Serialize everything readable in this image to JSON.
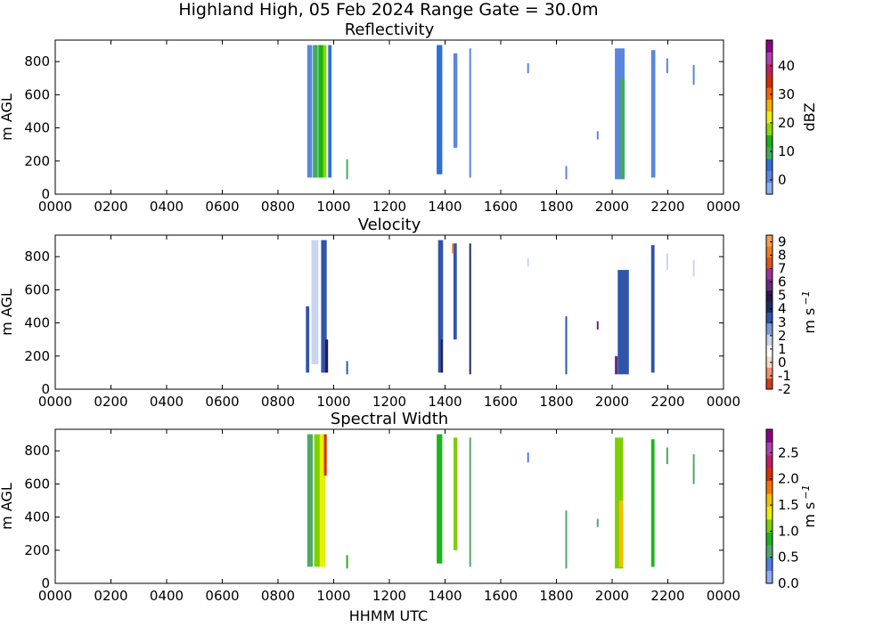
{
  "figure": {
    "suptitle": "Highland High, 05 Feb 2024 Range Gate = 30.0m",
    "xlabel": "HHMM UTC"
  },
  "chart_data": [
    {
      "type": "heatmap",
      "title": "Reflectivity",
      "ylabel": "m AGL",
      "x_tick_labels": [
        "0000",
        "0200",
        "0400",
        "0600",
        "0800",
        "1000",
        "1200",
        "1400",
        "1600",
        "1800",
        "2000",
        "2200",
        "0000"
      ],
      "xlim_hours": [
        0,
        24
      ],
      "ylim": [
        0,
        930
      ],
      "y_ticks": [
        0,
        200,
        400,
        600,
        800
      ],
      "colorbar": {
        "label": "dBZ",
        "range": [
          -5,
          49
        ],
        "ticks": [
          0,
          10,
          20,
          30,
          40
        ],
        "colors": [
          "#8fb1f2",
          "#5a86de",
          "#2f6fd6",
          "#3fae5a",
          "#17b317",
          "#8fd600",
          "#f0f000",
          "#f5b000",
          "#ff6000",
          "#d82a00",
          "#c02060",
          "#b040b0",
          "#8a008a"
        ]
      },
      "echo_columns": [
        {
          "t": 9.05,
          "dt": 0.18,
          "z0": 100,
          "z1": 900,
          "value": 0
        },
        {
          "t": 9.25,
          "dt": 0.18,
          "z0": 100,
          "z1": 900,
          "value": 8
        },
        {
          "t": 9.45,
          "dt": 0.18,
          "z0": 100,
          "z1": 900,
          "value": 14
        },
        {
          "t": 9.62,
          "dt": 0.12,
          "z0": 100,
          "z1": 900,
          "value": 18
        },
        {
          "t": 9.8,
          "dt": 0.12,
          "z0": 100,
          "z1": 900,
          "value": 6
        },
        {
          "t": 10.45,
          "dt": 0.06,
          "z0": 90,
          "z1": 210,
          "value": 10
        },
        {
          "t": 13.7,
          "dt": 0.2,
          "z0": 120,
          "z1": 900,
          "value": 4
        },
        {
          "t": 14.3,
          "dt": 0.14,
          "z0": 280,
          "z1": 850,
          "value": 2
        },
        {
          "t": 14.87,
          "dt": 0.05,
          "z0": 100,
          "z1": 880,
          "value": 0
        },
        {
          "t": 16.95,
          "dt": 0.04,
          "z0": 730,
          "z1": 790,
          "value": 0
        },
        {
          "t": 18.32,
          "dt": 0.04,
          "z0": 90,
          "z1": 170,
          "value": 1
        },
        {
          "t": 19.45,
          "dt": 0.03,
          "z0": 330,
          "z1": 380,
          "value": 0
        },
        {
          "t": 20.1,
          "dt": 0.35,
          "z0": 90,
          "z1": 880,
          "value": 2
        },
        {
          "t": 20.3,
          "dt": 0.15,
          "z0": 100,
          "z1": 700,
          "value": 8
        },
        {
          "t": 21.4,
          "dt": 0.15,
          "z0": 100,
          "z1": 870,
          "value": 1
        },
        {
          "t": 21.95,
          "dt": 0.05,
          "z0": 730,
          "z1": 820,
          "value": 0
        },
        {
          "t": 22.9,
          "dt": 0.06,
          "z0": 660,
          "z1": 780,
          "value": 0
        }
      ]
    },
    {
      "type": "heatmap",
      "title": "Velocity",
      "ylabel": "m AGL",
      "x_tick_labels": [
        "0000",
        "0200",
        "0400",
        "0600",
        "0800",
        "1000",
        "1200",
        "1400",
        "1600",
        "1800",
        "2000",
        "2200",
        "0000"
      ],
      "xlim_hours": [
        0,
        24
      ],
      "ylim": [
        0,
        930
      ],
      "y_ticks": [
        0,
        200,
        400,
        600,
        800
      ],
      "colorbar": {
        "label": "m s",
        "label_superscript": "−1",
        "range": [
          -2,
          9.5
        ],
        "ticks": [
          -2,
          -1,
          0,
          1,
          2,
          3,
          4,
          5,
          6,
          7,
          8,
          9
        ],
        "colors": [
          "#d23c1a",
          "#f09070",
          "#ffd8d0",
          "#ffffff",
          "#c8d6f0",
          "#7a9ad6",
          "#2f55a8",
          "#1b2a60",
          "#2a1848",
          "#6a2a80",
          "#a030a0",
          "#e05020",
          "#f07a20",
          "#f5a050"
        ]
      },
      "echo_columns": [
        {
          "t": 9.0,
          "dt": 0.12,
          "z0": 100,
          "z1": 500,
          "value": 3
        },
        {
          "t": 9.2,
          "dt": 0.25,
          "z0": 150,
          "z1": 900,
          "value": 2
        },
        {
          "t": 9.55,
          "dt": 0.2,
          "z0": 100,
          "z1": 900,
          "value": 3
        },
        {
          "t": 9.7,
          "dt": 0.1,
          "z0": 100,
          "z1": 300,
          "value": 5
        },
        {
          "t": 10.45,
          "dt": 0.06,
          "z0": 90,
          "z1": 170,
          "value": 3
        },
        {
          "t": 13.75,
          "dt": 0.18,
          "z0": 100,
          "z1": 900,
          "value": 3
        },
        {
          "t": 13.85,
          "dt": 0.06,
          "z0": 100,
          "z1": 300,
          "value": 5
        },
        {
          "t": 14.3,
          "dt": 0.12,
          "z0": 300,
          "z1": 880,
          "value": 3
        },
        {
          "t": 14.25,
          "dt": 0.05,
          "z0": 820,
          "z1": 880,
          "value": 8
        },
        {
          "t": 14.87,
          "dt": 0.05,
          "z0": 90,
          "z1": 880,
          "value": 4
        },
        {
          "t": 16.95,
          "dt": 0.04,
          "z0": 740,
          "z1": 790,
          "value": 2
        },
        {
          "t": 18.32,
          "dt": 0.04,
          "z0": 90,
          "z1": 440,
          "value": 3
        },
        {
          "t": 19.45,
          "dt": 0.03,
          "z0": 360,
          "z1": 410,
          "value": 6
        },
        {
          "t": 20.1,
          "dt": 0.2,
          "z0": 500,
          "z1": 880,
          "value": 1
        },
        {
          "t": 20.2,
          "dt": 0.4,
          "z0": 90,
          "z1": 720,
          "value": 3
        },
        {
          "t": 20.1,
          "dt": 0.1,
          "z0": 90,
          "z1": 200,
          "value": 6
        },
        {
          "t": 21.4,
          "dt": 0.12,
          "z0": 100,
          "z1": 870,
          "value": 3
        },
        {
          "t": 21.95,
          "dt": 0.05,
          "z0": 720,
          "z1": 820,
          "value": 2
        },
        {
          "t": 22.9,
          "dt": 0.05,
          "z0": 680,
          "z1": 780,
          "value": 2
        }
      ]
    },
    {
      "type": "heatmap",
      "title": "Spectral Width",
      "ylabel": "m AGL",
      "x_tick_labels": [
        "0000",
        "0200",
        "0400",
        "0600",
        "0800",
        "1000",
        "1200",
        "1400",
        "1600",
        "1800",
        "2000",
        "2200",
        "0000"
      ],
      "xlim_hours": [
        0,
        24
      ],
      "ylim": [
        0,
        930
      ],
      "y_ticks": [
        0,
        200,
        400,
        600,
        800
      ],
      "colorbar": {
        "label": "m s",
        "label_superscript": "−1",
        "range": [
          0,
          2.95
        ],
        "ticks": [
          0.0,
          0.5,
          1.0,
          1.5,
          2.0,
          2.5
        ],
        "tick_labels": [
          "0.0",
          "0.5",
          "1.0",
          "1.5",
          "2.0",
          "2.5"
        ],
        "colors": [
          "#8fb1f2",
          "#4f7fe0",
          "#4fa86a",
          "#1fb41f",
          "#7ed000",
          "#e8f000",
          "#f5c000",
          "#ff7000",
          "#d83000",
          "#c02060",
          "#b040b0",
          "#8a008a"
        ]
      },
      "echo_columns": [
        {
          "t": 9.05,
          "dt": 0.2,
          "z0": 100,
          "z1": 900,
          "value": 0.7
        },
        {
          "t": 9.3,
          "dt": 0.2,
          "z0": 100,
          "z1": 900,
          "value": 1.0
        },
        {
          "t": 9.5,
          "dt": 0.2,
          "z0": 100,
          "z1": 900,
          "value": 1.4
        },
        {
          "t": 9.65,
          "dt": 0.1,
          "z0": 650,
          "z1": 900,
          "value": 2.0
        },
        {
          "t": 10.45,
          "dt": 0.06,
          "z0": 90,
          "z1": 170,
          "value": 0.8
        },
        {
          "t": 13.7,
          "dt": 0.2,
          "z0": 120,
          "z1": 900,
          "value": 0.9
        },
        {
          "t": 14.3,
          "dt": 0.14,
          "z0": 200,
          "z1": 880,
          "value": 1.1
        },
        {
          "t": 14.87,
          "dt": 0.05,
          "z0": 100,
          "z1": 880,
          "value": 0.6
        },
        {
          "t": 16.95,
          "dt": 0.04,
          "z0": 730,
          "z1": 790,
          "value": 0.4
        },
        {
          "t": 18.32,
          "dt": 0.04,
          "z0": 90,
          "z1": 440,
          "value": 0.6
        },
        {
          "t": 19.45,
          "dt": 0.03,
          "z0": 340,
          "z1": 390,
          "value": 0.7
        },
        {
          "t": 20.1,
          "dt": 0.3,
          "z0": 90,
          "z1": 880,
          "value": 1.1
        },
        {
          "t": 20.25,
          "dt": 0.15,
          "z0": 100,
          "z1": 500,
          "value": 1.5
        },
        {
          "t": 21.4,
          "dt": 0.12,
          "z0": 100,
          "z1": 870,
          "value": 0.9
        },
        {
          "t": 21.95,
          "dt": 0.05,
          "z0": 720,
          "z1": 820,
          "value": 0.5
        },
        {
          "t": 22.9,
          "dt": 0.05,
          "z0": 600,
          "z1": 780,
          "value": 0.7
        }
      ]
    }
  ]
}
